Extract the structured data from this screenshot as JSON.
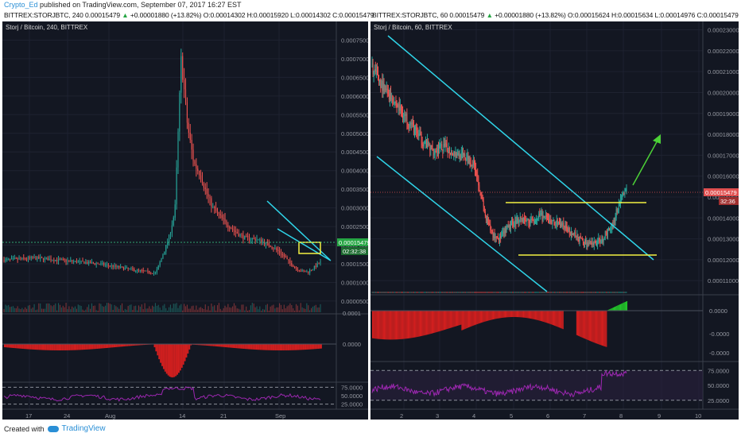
{
  "header": {
    "author": "Crypto_Ed",
    "published": "published on TradingView.com, September 07, 2017 16:27 EST"
  },
  "left": {
    "title": {
      "symbol": "BITTREX:STORJBTC, 240",
      "last": "0.00015479",
      "change": "+0.00001880 (+13.82%)",
      "ohlc": "O:0.00014302 H:0.00015920 L:0.00014302 C:0.00015479"
    },
    "series_label": "Storj / Bitcoin, 240, BITTREX",
    "price_tag": "0.00015479",
    "timer": "02:32:38",
    "color_axis_text": "#9598a1"
  },
  "right": {
    "title": {
      "symbol": "BITTREX:STORJBTC, 60",
      "last": "0.00015479",
      "change": "+0.00001880 (+13.82%)",
      "ohlc": "O:0.00015624 H:0.00015634 L:0.00014976 C:0.00015479"
    },
    "series_label": "Storj / Bitcoin, 60, BITTREX",
    "price_tag": "0.00015479",
    "timer": "32:36"
  },
  "footer": {
    "created": "Created with",
    "brand": "TradingView"
  },
  "colors": {
    "background": "#131722",
    "up": "#26a69a",
    "down": "#ef5350",
    "trend_cyan": "#2fd4e8",
    "box_yellow": "#f5f242",
    "arrow_green": "#4cd137",
    "rsi": "#9c27b0",
    "macd_up": "#22c32a",
    "macd_down": "#d21f1f",
    "price_tag_left": "#26a644",
    "price_tag_right": "#e05050"
  },
  "chart_data": [
    {
      "type": "line",
      "title": "Storj / Bitcoin, 240, BITTREX",
      "x_tick_labels": [
        "17",
        "24",
        "Aug",
        "14",
        "21",
        "Sep"
      ],
      "y_tick_labels": [
        "0.00075000",
        "0.00070000",
        "0.00065000",
        "0.00060000",
        "0.00055000",
        "0.00050000",
        "0.00045000",
        "0.00040000",
        "0.00035000",
        "0.00030000",
        "0.00025000",
        "0.00020000",
        "0.00015000",
        "0.00010000",
        "0.00005000"
      ],
      "ylim": [
        2e-05,
        0.0008
      ],
      "price_x": [
        0,
        10,
        20,
        30,
        40,
        48,
        52,
        54,
        56,
        58,
        60,
        62,
        64,
        66,
        68,
        70,
        72,
        74,
        76,
        80,
        84,
        88,
        90,
        92,
        94,
        96,
        98,
        100
      ],
      "price": [
        0.00016,
        0.000165,
        0.000158,
        0.00015,
        0.000135,
        0.000125,
        0.000215,
        0.00029,
        0.0007,
        0.00052,
        0.00042,
        0.00039,
        0.00034,
        0.0003,
        0.00028,
        0.00026,
        0.000245,
        0.00023,
        0.00022,
        0.000215,
        0.0002,
        0.000175,
        0.000155,
        0.00014,
        0.00013,
        0.000128,
        0.00014,
        0.000155
      ],
      "macd_axis": [
        "0.0001",
        "0.0000"
      ],
      "rsi_axis": [
        "75.0000",
        "50.0000",
        "25.0000"
      ]
    },
    {
      "type": "line",
      "title": "Storj / Bitcoin, 60, BITTREX",
      "x_tick_labels": [
        "2",
        "3",
        "4",
        "5",
        "6",
        "7",
        "8",
        "9",
        "10"
      ],
      "y_tick_labels": [
        "0.00023000",
        "0.00022000",
        "0.00021000",
        "0.00020000",
        "0.00019000",
        "0.00018000",
        "0.00017000",
        "0.00016000",
        "0.00015000",
        "0.00014000",
        "0.00013000",
        "0.00012000",
        "0.00011000"
      ],
      "ylim": [
        0.000104,
        0.000234
      ],
      "price_x": [
        0,
        3,
        6,
        9,
        12,
        15,
        18,
        21,
        24,
        27,
        30,
        33,
        35,
        37,
        40,
        43,
        46,
        49,
        52,
        55,
        58,
        61,
        64,
        67,
        70,
        72,
        74
      ],
      "price": [
        0.000212,
        0.000203,
        0.000197,
        0.00019,
        0.000183,
        0.000176,
        0.000172,
        0.000174,
        0.000171,
        0.000169,
        0.000165,
        0.00014,
        0.000132,
        0.00013,
        0.000136,
        0.00014,
        0.000138,
        0.000141,
        0.000138,
        0.000137,
        0.000133,
        0.000129,
        0.000127,
        0.00013,
        0.000137,
        0.000148,
        0.000154
      ],
      "macd_axis": [
        "0.0000",
        "-0.0000",
        "-0.0000"
      ],
      "rsi_axis": [
        "75.0000",
        "50.0000",
        "25.0000"
      ]
    }
  ]
}
